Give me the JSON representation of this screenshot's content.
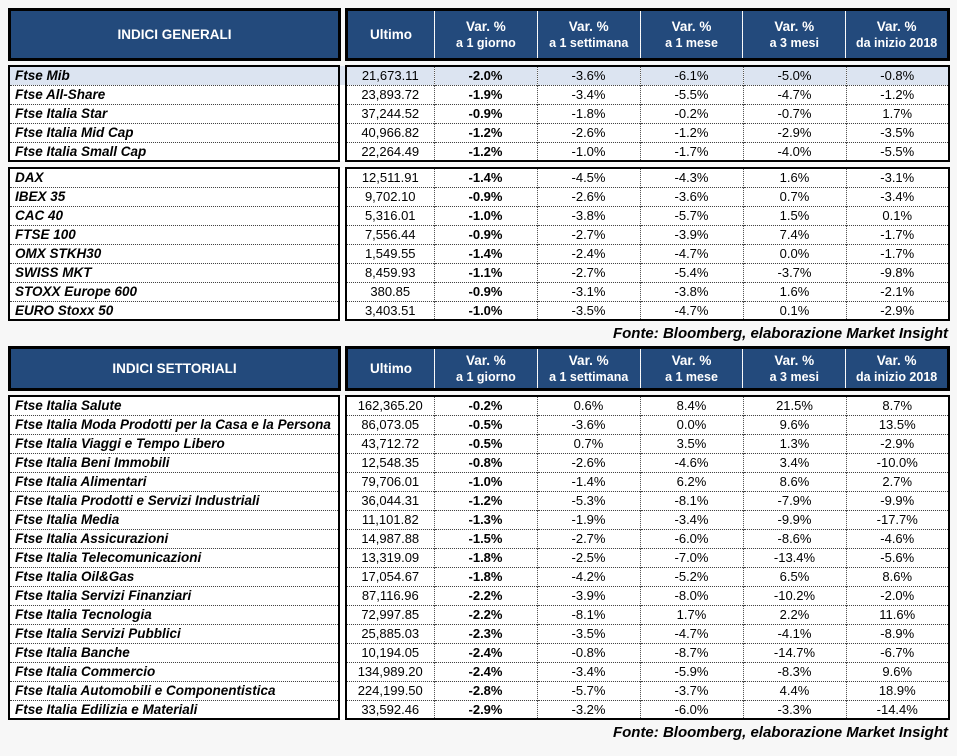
{
  "columns": [
    {
      "l1": "Ultimo",
      "l2": ""
    },
    {
      "l1": "Var. %",
      "l2": "a 1 giorno"
    },
    {
      "l1": "Var. %",
      "l2": "a 1 settimana"
    },
    {
      "l1": "Var. %",
      "l2": "a 1 mese"
    },
    {
      "l1": "Var. %",
      "l2": "a 3 mesi"
    },
    {
      "l1": "Var. %",
      "l2": "da inizio 2018"
    }
  ],
  "fonte": "Fonte: Bloomberg, elaborazione Market Insight",
  "colors": {
    "header_bg": "#234a7c",
    "header_text": "#ffffff",
    "highlight_row_bg": "#dce4f1"
  },
  "tables": [
    {
      "title": "INDICI GENERALI",
      "groups": [
        {
          "rows": [
            {
              "name": "Ftse Mib",
              "ultimo": "21,673.11",
              "d1": "-2.0%",
              "w1": "-3.6%",
              "m1": "-6.1%",
              "m3": "-5.0%",
              "ytd": "-0.8%",
              "hl": true
            },
            {
              "name": "Ftse All-Share",
              "ultimo": "23,893.72",
              "d1": "-1.9%",
              "w1": "-3.4%",
              "m1": "-5.5%",
              "m3": "-4.7%",
              "ytd": "-1.2%"
            },
            {
              "name": "Ftse Italia Star",
              "ultimo": "37,244.52",
              "d1": "-0.9%",
              "w1": "-1.8%",
              "m1": "-0.2%",
              "m3": "-0.7%",
              "ytd": "1.7%"
            },
            {
              "name": "Ftse Italia Mid Cap",
              "ultimo": "40,966.82",
              "d1": "-1.2%",
              "w1": "-2.6%",
              "m1": "-1.2%",
              "m3": "-2.9%",
              "ytd": "-3.5%"
            },
            {
              "name": "Ftse Italia Small Cap",
              "ultimo": "22,264.49",
              "d1": "-1.2%",
              "w1": "-1.0%",
              "m1": "-1.7%",
              "m3": "-4.0%",
              "ytd": "-5.5%"
            }
          ]
        },
        {
          "rows": [
            {
              "name": "DAX",
              "ultimo": "12,511.91",
              "d1": "-1.4%",
              "w1": "-4.5%",
              "m1": "-4.3%",
              "m3": "1.6%",
              "ytd": "-3.1%"
            },
            {
              "name": "IBEX 35",
              "ultimo": "9,702.10",
              "d1": "-0.9%",
              "w1": "-2.6%",
              "m1": "-3.6%",
              "m3": "0.7%",
              "ytd": "-3.4%"
            },
            {
              "name": "CAC 40",
              "ultimo": "5,316.01",
              "d1": "-1.0%",
              "w1": "-3.8%",
              "m1": "-5.7%",
              "m3": "1.5%",
              "ytd": "0.1%"
            },
            {
              "name": "FTSE 100",
              "ultimo": "7,556.44",
              "d1": "-0.9%",
              "w1": "-2.7%",
              "m1": "-3.9%",
              "m3": "7.4%",
              "ytd": "-1.7%"
            },
            {
              "name": "OMX STKH30",
              "ultimo": "1,549.55",
              "d1": "-1.4%",
              "w1": "-2.4%",
              "m1": "-4.7%",
              "m3": "0.0%",
              "ytd": "-1.7%"
            },
            {
              "name": "SWISS MKT",
              "ultimo": "8,459.93",
              "d1": "-1.1%",
              "w1": "-2.7%",
              "m1": "-5.4%",
              "m3": "-3.7%",
              "ytd": "-9.8%"
            },
            {
              "name": "STOXX Europe 600",
              "ultimo": "380.85",
              "d1": "-0.9%",
              "w1": "-3.1%",
              "m1": "-3.8%",
              "m3": "1.6%",
              "ytd": "-2.1%"
            },
            {
              "name": "EURO Stoxx 50",
              "ultimo": "3,403.51",
              "d1": "-1.0%",
              "w1": "-3.5%",
              "m1": "-4.7%",
              "m3": "0.1%",
              "ytd": "-2.9%"
            }
          ]
        }
      ]
    },
    {
      "title": "INDICI SETTORIALI",
      "groups": [
        {
          "rows": [
            {
              "name": "Ftse Italia Salute",
              "ultimo": "162,365.20",
              "d1": "-0.2%",
              "w1": "0.6%",
              "m1": "8.4%",
              "m3": "21.5%",
              "ytd": "8.7%"
            },
            {
              "name": "Ftse Italia Moda Prodotti per la Casa e la Persona",
              "ultimo": "86,073.05",
              "d1": "-0.5%",
              "w1": "-3.6%",
              "m1": "0.0%",
              "m3": "9.6%",
              "ytd": "13.5%"
            },
            {
              "name": "Ftse Italia Viaggi e Tempo Libero",
              "ultimo": "43,712.72",
              "d1": "-0.5%",
              "w1": "0.7%",
              "m1": "3.5%",
              "m3": "1.3%",
              "ytd": "-2.9%"
            },
            {
              "name": "Ftse Italia Beni Immobili",
              "ultimo": "12,548.35",
              "d1": "-0.8%",
              "w1": "-2.6%",
              "m1": "-4.6%",
              "m3": "3.4%",
              "ytd": "-10.0%"
            },
            {
              "name": "Ftse Italia Alimentari",
              "ultimo": "79,706.01",
              "d1": "-1.0%",
              "w1": "-1.4%",
              "m1": "6.2%",
              "m3": "8.6%",
              "ytd": "2.7%"
            },
            {
              "name": "Ftse Italia Prodotti e Servizi Industriali",
              "ultimo": "36,044.31",
              "d1": "-1.2%",
              "w1": "-5.3%",
              "m1": "-8.1%",
              "m3": "-7.9%",
              "ytd": "-9.9%"
            },
            {
              "name": "Ftse Italia Media",
              "ultimo": "11,101.82",
              "d1": "-1.3%",
              "w1": "-1.9%",
              "m1": "-3.4%",
              "m3": "-9.9%",
              "ytd": "-17.7%"
            },
            {
              "name": "Ftse Italia Assicurazioni",
              "ultimo": "14,987.88",
              "d1": "-1.5%",
              "w1": "-2.7%",
              "m1": "-6.0%",
              "m3": "-8.6%",
              "ytd": "-4.6%"
            },
            {
              "name": "Ftse Italia Telecomunicazioni",
              "ultimo": "13,319.09",
              "d1": "-1.8%",
              "w1": "-2.5%",
              "m1": "-7.0%",
              "m3": "-13.4%",
              "ytd": "-5.6%"
            },
            {
              "name": "Ftse Italia Oil&Gas",
              "ultimo": "17,054.67",
              "d1": "-1.8%",
              "w1": "-4.2%",
              "m1": "-5.2%",
              "m3": "6.5%",
              "ytd": "8.6%"
            },
            {
              "name": "Ftse Italia Servizi Finanziari",
              "ultimo": "87,116.96",
              "d1": "-2.2%",
              "w1": "-3.9%",
              "m1": "-8.0%",
              "m3": "-10.2%",
              "ytd": "-2.0%"
            },
            {
              "name": "Ftse Italia Tecnologia",
              "ultimo": "72,997.85",
              "d1": "-2.2%",
              "w1": "-8.1%",
              "m1": "1.7%",
              "m3": "2.2%",
              "ytd": "11.6%"
            },
            {
              "name": "Ftse Italia Servizi Pubblici",
              "ultimo": "25,885.03",
              "d1": "-2.3%",
              "w1": "-3.5%",
              "m1": "-4.7%",
              "m3": "-4.1%",
              "ytd": "-8.9%"
            },
            {
              "name": "Ftse Italia Banche",
              "ultimo": "10,194.05",
              "d1": "-2.4%",
              "w1": "-0.8%",
              "m1": "-8.7%",
              "m3": "-14.7%",
              "ytd": "-6.7%"
            },
            {
              "name": "Ftse Italia Commercio",
              "ultimo": "134,989.20",
              "d1": "-2.4%",
              "w1": "-3.4%",
              "m1": "-5.9%",
              "m3": "-8.3%",
              "ytd": "9.6%"
            },
            {
              "name": "Ftse Italia Automobili e Componentistica",
              "ultimo": "224,199.50",
              "d1": "-2.8%",
              "w1": "-5.7%",
              "m1": "-3.7%",
              "m3": "4.4%",
              "ytd": "18.9%"
            },
            {
              "name": "Ftse Italia Edilizia e Materiali",
              "ultimo": "33,592.46",
              "d1": "-2.9%",
              "w1": "-3.2%",
              "m1": "-6.0%",
              "m3": "-3.3%",
              "ytd": "-14.4%"
            }
          ]
        }
      ]
    }
  ]
}
